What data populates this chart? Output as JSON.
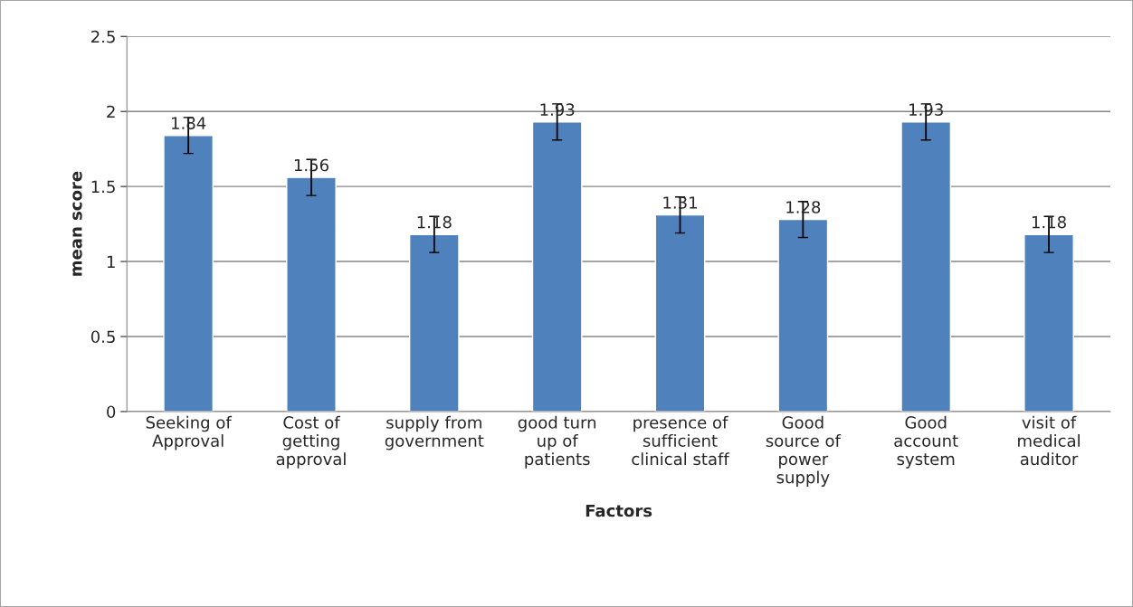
{
  "chart_data": {
    "type": "bar",
    "xlabel": "Factors",
    "ylabel": "mean score",
    "categories": [
      "Seeking of\nApproval",
      "Cost of\ngetting\napproval",
      "supply from\ngovernment",
      "good turn\nup of\npatients",
      "presence of\nsufficient\nclinical staff",
      "Good\nsource of\npower\nsupply",
      "Good\naccount\nsystem",
      "visit of\nmedical\nauditor"
    ],
    "values": [
      1.84,
      1.56,
      1.18,
      1.93,
      1.31,
      1.28,
      1.93,
      1.18
    ],
    "errors": [
      0.12,
      0.12,
      0.12,
      0.12,
      0.12,
      0.12,
      0.12,
      0.12
    ],
    "color": "#4f81bd",
    "ylim": [
      0,
      2.5
    ],
    "yticks": [
      0,
      0.5,
      1,
      1.5,
      2,
      2.5
    ],
    "grid": "y",
    "data_labels": true,
    "legend": false
  }
}
